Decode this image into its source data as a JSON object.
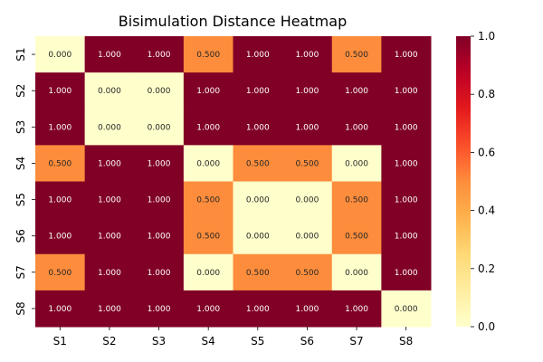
{
  "chart_data": {
    "type": "heatmap",
    "title": "Bisimulation Distance Heatmap",
    "xlabel": "",
    "ylabel": "",
    "x_categories": [
      "S1",
      "S2",
      "S3",
      "S4",
      "S5",
      "S6",
      "S7",
      "S8"
    ],
    "y_categories": [
      "S1",
      "S2",
      "S3",
      "S4",
      "S5",
      "S6",
      "S7",
      "S8"
    ],
    "values": [
      [
        0.0,
        1.0,
        1.0,
        0.5,
        1.0,
        1.0,
        0.5,
        1.0
      ],
      [
        1.0,
        0.0,
        0.0,
        1.0,
        1.0,
        1.0,
        1.0,
        1.0
      ],
      [
        1.0,
        0.0,
        0.0,
        1.0,
        1.0,
        1.0,
        1.0,
        1.0
      ],
      [
        0.5,
        1.0,
        1.0,
        0.0,
        0.5,
        0.5,
        0.0,
        1.0
      ],
      [
        1.0,
        1.0,
        1.0,
        0.5,
        0.0,
        0.0,
        0.5,
        1.0
      ],
      [
        1.0,
        1.0,
        1.0,
        0.5,
        0.0,
        0.0,
        0.5,
        1.0
      ],
      [
        0.5,
        1.0,
        1.0,
        0.0,
        0.5,
        0.5,
        0.0,
        1.0
      ],
      [
        1.0,
        1.0,
        1.0,
        1.0,
        1.0,
        1.0,
        1.0,
        0.0
      ]
    ],
    "value_format_decimals": 3,
    "colormap": "YlOrRd",
    "vmin": 0.0,
    "vmax": 1.0,
    "colorbar_ticks": [
      "0.0",
      "0.2",
      "0.4",
      "0.6",
      "0.8",
      "1.0"
    ],
    "colors": {
      "low": "#ffffcc",
      "mid": "#fd8d3c",
      "high": "#800026"
    }
  }
}
